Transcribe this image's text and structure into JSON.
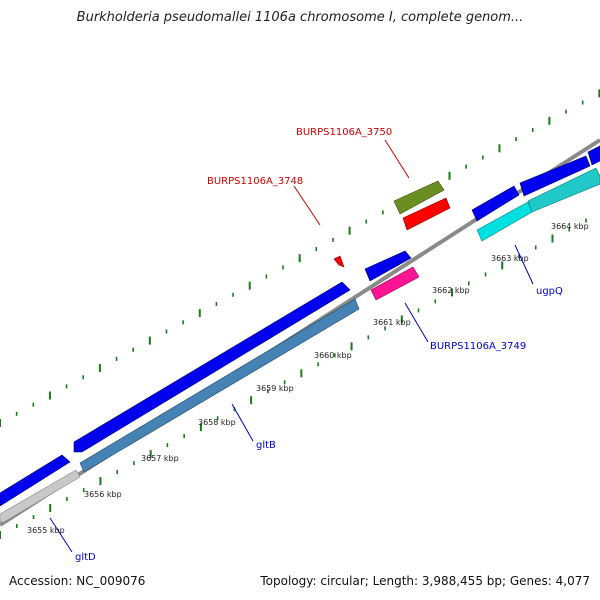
{
  "title": "Burkholderia pseudomallei 1106a chromosome I, complete genom...",
  "footer": {
    "accession": "Accession: NC_009076",
    "summary": "Topology: circular; Length: 3,988,455 bp; Genes: 4,077"
  },
  "colors": {
    "backbone": "#808080",
    "tick": "#1a7a1a",
    "blue_gene": "#0000ee",
    "steel_gene": "#4682b4",
    "cyan_gene": "#00e0e0",
    "olive_gene": "#6b8e23",
    "red_gene": "#ff0000",
    "pink_gene": "#ff1493",
    "gray_gene": "#c8c8c8",
    "label_red": "#cc0000",
    "label_blue": "#0000cc"
  },
  "axis": {
    "unit": "kbp",
    "tick_labels": [
      "3655 kbp",
      "3656 kbp",
      "3657 kbp",
      "3658 kbp",
      "3659 kbp",
      "3660 kbp",
      "3661 kbp",
      "3662 kbp",
      "3663 kbp",
      "3664 kbp"
    ]
  },
  "gene_labels": [
    {
      "text": "BURPS1106A_3750",
      "color": "red"
    },
    {
      "text": "BURPS1106A_3748",
      "color": "red"
    },
    {
      "text": "ugpQ",
      "color": "blue"
    },
    {
      "text": "BURPS1106A_3749",
      "color": "blue"
    },
    {
      "text": "gltB",
      "color": "blue"
    },
    {
      "text": "gltD",
      "color": "blue"
    }
  ]
}
